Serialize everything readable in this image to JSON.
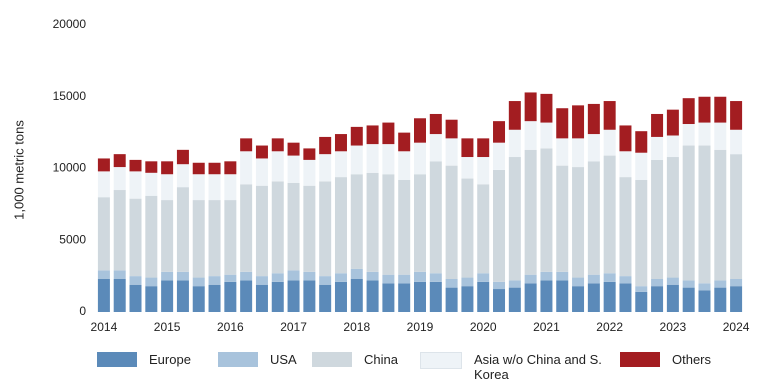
{
  "chart_data": {
    "type": "stacked-bar",
    "y_label": "1,000 metric tons",
    "categories": [
      "2014",
      null,
      null,
      null,
      "2015",
      null,
      null,
      null,
      "2016",
      null,
      null,
      null,
      "2017",
      null,
      null,
      null,
      "2018",
      null,
      null,
      null,
      "2019",
      null,
      null,
      null,
      "2020",
      null,
      null,
      null,
      "2021",
      null,
      null,
      null,
      "2022",
      null,
      null,
      null,
      "2023",
      null,
      null,
      null,
      "2024"
    ],
    "ylim": [
      0,
      20000
    ],
    "yticks": [
      0,
      5000,
      10000,
      15000,
      20000
    ],
    "series": [
      {
        "name": "Europe",
        "color": "#5b8ab9",
        "values": [
          2300,
          2300,
          1900,
          1800,
          2200,
          2200,
          1800,
          1900,
          2100,
          2200,
          1900,
          2100,
          2200,
          2200,
          1900,
          2100,
          2300,
          2200,
          2000,
          2000,
          2100,
          2100,
          1700,
          1800,
          2100,
          1600,
          1700,
          2000,
          2200,
          2200,
          1800,
          2000,
          2100,
          2000,
          1400,
          1800,
          1900,
          1700,
          1500,
          1700,
          1800
        ]
      },
      {
        "name": "USA",
        "color": "#a8c3dc",
        "values": [
          600,
          600,
          600,
          600,
          600,
          600,
          600,
          600,
          500,
          600,
          600,
          600,
          700,
          600,
          600,
          600,
          700,
          600,
          600,
          600,
          700,
          600,
          600,
          600,
          600,
          500,
          500,
          600,
          600,
          600,
          600,
          600,
          600,
          500,
          400,
          500,
          500,
          500,
          500,
          500,
          500
        ]
      },
      {
        "name": "China",
        "color": "#cfd8de",
        "values": [
          5100,
          5600,
          5400,
          5700,
          5000,
          5900,
          5400,
          5300,
          5200,
          6100,
          6300,
          6400,
          6100,
          6000,
          6600,
          6700,
          6600,
          6900,
          7000,
          6600,
          6800,
          7800,
          7900,
          6900,
          6200,
          7800,
          8600,
          8700,
          8600,
          7400,
          7700,
          7900,
          8200,
          6900,
          7400,
          8300,
          8400,
          9400,
          9600,
          9100,
          8700
        ]
      },
      {
        "name": "Asia w/o China and S. Korea",
        "color": "#eef3f7",
        "values": [
          1800,
          1600,
          1900,
          1600,
          1800,
          1600,
          1800,
          1800,
          1800,
          2300,
          1900,
          2100,
          1900,
          1800,
          1900,
          1800,
          2000,
          2000,
          2100,
          2000,
          2200,
          1900,
          1900,
          1500,
          1900,
          1900,
          1900,
          2000,
          1800,
          1900,
          2000,
          1900,
          1800,
          1800,
          1900,
          1600,
          1500,
          1500,
          1600,
          1900,
          1700
        ]
      },
      {
        "name": "Others",
        "color": "#a31d21",
        "values": [
          900,
          900,
          800,
          800,
          900,
          1000,
          800,
          800,
          900,
          900,
          900,
          900,
          900,
          800,
          1200,
          1200,
          1300,
          1300,
          1500,
          1300,
          1700,
          1400,
          1300,
          1300,
          1300,
          1500,
          2000,
          2000,
          2000,
          2100,
          2300,
          2100,
          2000,
          1800,
          1500,
          1600,
          1800,
          1800,
          1800,
          1800,
          2000
        ]
      }
    ]
  }
}
